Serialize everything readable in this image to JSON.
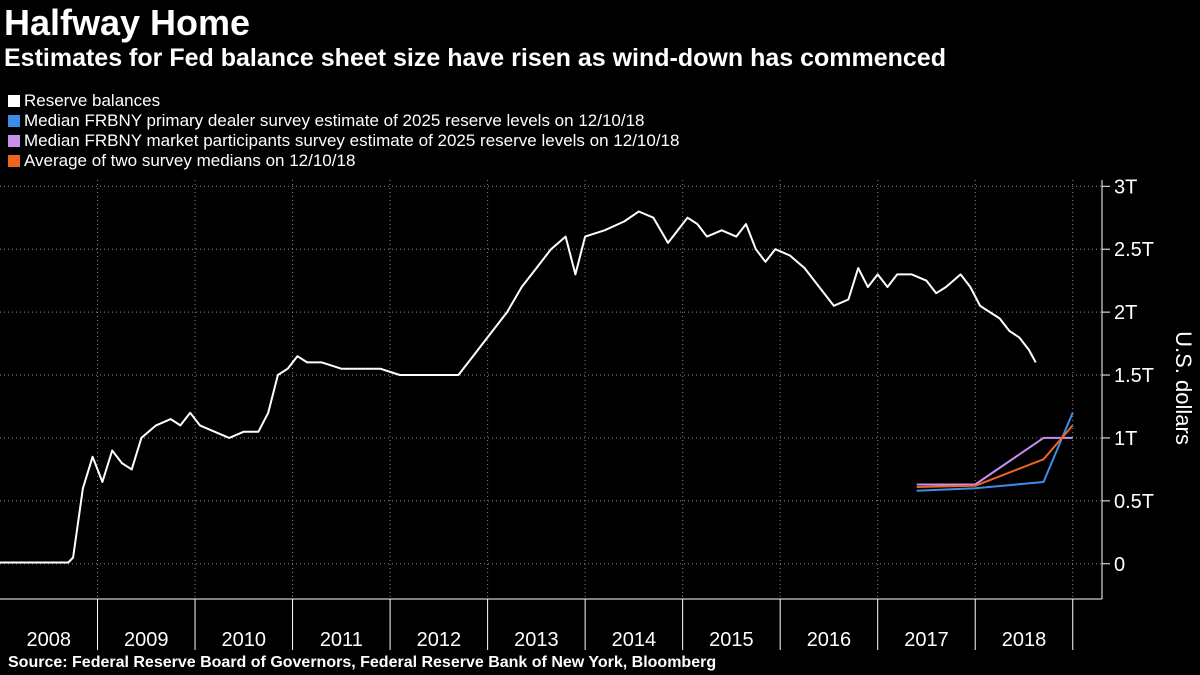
{
  "header": {
    "title": "Halfway Home",
    "subtitle": "Estimates for Fed balance sheet size have risen as wind-down has commenced"
  },
  "source": "Source: Federal Reserve Board of Governors, Federal Reserve Bank of New York, Bloomberg",
  "chart_data": {
    "type": "line",
    "ylabel": "U.S. dollars",
    "ylim": [
      -0.28,
      3.05
    ],
    "y_ticks": [
      {
        "value": 3,
        "label": "3T"
      },
      {
        "value": 2.5,
        "label": "2.5T"
      },
      {
        "value": 2,
        "label": "2T"
      },
      {
        "value": 1.5,
        "label": "1.5T"
      },
      {
        "value": 1,
        "label": "1T"
      },
      {
        "value": 0.5,
        "label": "0.5T"
      },
      {
        "value": 0,
        "label": "0"
      }
    ],
    "x_categories": [
      "2008",
      "2009",
      "2010",
      "2011",
      "2012",
      "2013",
      "2014",
      "2015",
      "2016",
      "2017",
      "2018"
    ],
    "xlim": [
      2008.0,
      2019.3
    ],
    "grid": true,
    "legend_placement": "top-left",
    "series": [
      {
        "name": "Reserve balances",
        "color": "#ffffff",
        "x": [
          2008.0,
          2008.4,
          2008.7,
          2008.75,
          2008.85,
          2008.95,
          2009.05,
          2009.15,
          2009.25,
          2009.35,
          2009.45,
          2009.6,
          2009.75,
          2009.85,
          2009.95,
          2010.05,
          2010.2,
          2010.35,
          2010.5,
          2010.65,
          2010.75,
          2010.85,
          2010.95,
          2011.05,
          2011.15,
          2011.3,
          2011.5,
          2011.7,
          2011.9,
          2012.1,
          2012.3,
          2012.5,
          2012.7,
          2012.85,
          2012.95,
          2013.05,
          2013.2,
          2013.35,
          2013.5,
          2013.65,
          2013.8,
          2013.9,
          2014.0,
          2014.2,
          2014.4,
          2014.55,
          2014.7,
          2014.85,
          2014.95,
          2015.05,
          2015.15,
          2015.25,
          2015.4,
          2015.55,
          2015.65,
          2015.75,
          2015.85,
          2015.95,
          2016.1,
          2016.25,
          2016.4,
          2016.55,
          2016.7,
          2016.8,
          2016.9,
          2017.0,
          2017.1,
          2017.2,
          2017.35,
          2017.5,
          2017.6,
          2017.7,
          2017.85,
          2017.95,
          2018.05,
          2018.15,
          2018.25,
          2018.35,
          2018.45,
          2018.55,
          2018.62
        ],
        "values": [
          0.01,
          0.01,
          0.01,
          0.05,
          0.6,
          0.85,
          0.65,
          0.9,
          0.8,
          0.75,
          1.0,
          1.1,
          1.15,
          1.1,
          1.2,
          1.1,
          1.05,
          1.0,
          1.05,
          1.05,
          1.2,
          1.5,
          1.55,
          1.65,
          1.6,
          1.6,
          1.55,
          1.55,
          1.55,
          1.5,
          1.5,
          1.5,
          1.5,
          1.65,
          1.75,
          1.85,
          2.0,
          2.2,
          2.35,
          2.5,
          2.6,
          2.3,
          2.6,
          2.65,
          2.72,
          2.8,
          2.75,
          2.55,
          2.65,
          2.75,
          2.7,
          2.6,
          2.65,
          2.6,
          2.7,
          2.5,
          2.4,
          2.5,
          2.45,
          2.35,
          2.2,
          2.05,
          2.1,
          2.35,
          2.2,
          2.3,
          2.2,
          2.3,
          2.3,
          2.25,
          2.15,
          2.2,
          2.3,
          2.2,
          2.05,
          2.0,
          1.95,
          1.85,
          1.8,
          1.7,
          1.6
        ]
      },
      {
        "name": "Median FRBNY primary dealer survey estimate of 2025 reserve levels on 12/10/18",
        "color": "#3b8ee8",
        "x": [
          2017.4,
          2018.0,
          2018.7,
          2019.0
        ],
        "values": [
          0.58,
          0.6,
          0.65,
          1.2
        ]
      },
      {
        "name": "Median FRBNY market participants survey estimate of 2025 reserve levels on 12/10/18",
        "color": "#c88ef0",
        "x": [
          2017.4,
          2018.0,
          2018.7,
          2019.0
        ],
        "values": [
          0.63,
          0.63,
          1.0,
          1.0
        ]
      },
      {
        "name": "Average of two survey medians on 12/10/18",
        "color": "#f0641e",
        "x": [
          2017.4,
          2018.0,
          2018.7,
          2019.0
        ],
        "values": [
          0.61,
          0.62,
          0.83,
          1.1
        ]
      }
    ]
  }
}
